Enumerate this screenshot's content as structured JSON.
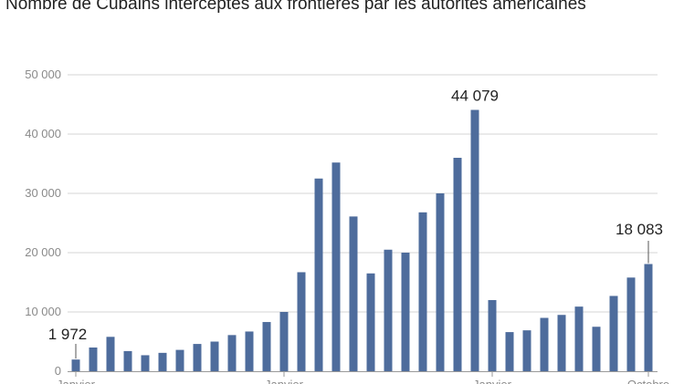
{
  "title": "Nombre de Cubains interceptés aux frontières par les autorités américaines",
  "colors": {
    "bar": "#4e6c9c",
    "grid": "#d6d6d6",
    "axis": "#9a9a9a",
    "tick_text": "#8a8a8a",
    "label_text": "#222222"
  },
  "chart_data": {
    "type": "bar",
    "title": "Nombre de Cubains interceptés aux frontières par les autorités américaines",
    "xlabel": "",
    "ylabel": "",
    "ylim": [
      0,
      50000
    ],
    "yticks": [
      0,
      10000,
      20000,
      30000,
      40000,
      50000
    ],
    "ytick_labels": [
      "0",
      "10 000",
      "20 000",
      "30 000",
      "40 000",
      "50 000"
    ],
    "grid": true,
    "x_tick_labels": [
      {
        "index": 0,
        "label": "Janvier"
      },
      {
        "index": 12,
        "label": "Janvier"
      },
      {
        "index": 24,
        "label": "Janvier"
      },
      {
        "index": 33,
        "label": "Octobre"
      }
    ],
    "values": [
      1972,
      4000,
      5800,
      3400,
      2700,
      3100,
      3600,
      4600,
      5000,
      6100,
      6700,
      8300,
      10000,
      16700,
      32500,
      35200,
      26100,
      16500,
      20500,
      20000,
      26800,
      30000,
      36000,
      44079,
      12000,
      6600,
      6900,
      9000,
      9500,
      10900,
      7500,
      12700,
      15800,
      18083
    ],
    "annotations": [
      {
        "index": 0,
        "text": "1 972"
      },
      {
        "index": 23,
        "text": "44 079"
      },
      {
        "index": 33,
        "text": "18 083"
      }
    ]
  }
}
